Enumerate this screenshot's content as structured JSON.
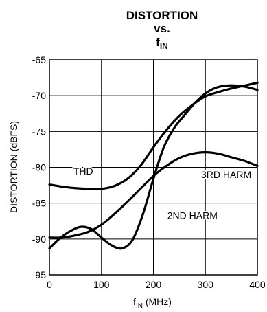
{
  "chart_data": {
    "type": "line",
    "title": {
      "line1": "DISTORTION",
      "line2": "vs.",
      "line3_main": "f",
      "line3_sub": "IN"
    },
    "xlabel": {
      "main": "f",
      "sub": "IN",
      "rest": " (MHz)"
    },
    "ylabel": "DISTORTION (dBFS)",
    "xlim": [
      0,
      400
    ],
    "ylim": [
      -95,
      -65
    ],
    "xticks": [
      0,
      100,
      200,
      300,
      400
    ],
    "yticks": [
      -65,
      -70,
      -75,
      -80,
      -85,
      -90,
      -95
    ],
    "grid": true,
    "series": [
      {
        "name": "THD",
        "points": [
          [
            0,
            -82.4
          ],
          [
            25,
            -82.7
          ],
          [
            50,
            -82.9
          ],
          [
            75,
            -83.0
          ],
          [
            100,
            -83.0
          ],
          [
            125,
            -82.6
          ],
          [
            150,
            -81.6
          ],
          [
            175,
            -79.8
          ],
          [
            200,
            -77.2
          ],
          [
            225,
            -74.8
          ],
          [
            250,
            -72.8
          ],
          [
            275,
            -71.3
          ],
          [
            300,
            -70.1
          ],
          [
            325,
            -69.5
          ],
          [
            350,
            -69.0
          ],
          [
            375,
            -68.6
          ],
          [
            400,
            -68.2
          ]
        ]
      },
      {
        "name": "2ND HARM",
        "points": [
          [
            0,
            -91.3
          ],
          [
            20,
            -89.9
          ],
          [
            40,
            -88.9
          ],
          [
            60,
            -88.3
          ],
          [
            80,
            -88.6
          ],
          [
            100,
            -89.8
          ],
          [
            120,
            -90.9
          ],
          [
            140,
            -91.3
          ],
          [
            160,
            -90.1
          ],
          [
            180,
            -86.5
          ],
          [
            200,
            -81.6
          ],
          [
            220,
            -77.2
          ],
          [
            240,
            -74.5
          ],
          [
            260,
            -72.7
          ],
          [
            280,
            -71.0
          ],
          [
            300,
            -69.7
          ],
          [
            320,
            -68.9
          ],
          [
            340,
            -68.6
          ],
          [
            360,
            -68.6
          ],
          [
            380,
            -68.8
          ],
          [
            400,
            -69.2
          ]
        ]
      },
      {
        "name": "3RD HARM",
        "points": [
          [
            0,
            -89.8
          ],
          [
            25,
            -89.8
          ],
          [
            50,
            -89.5
          ],
          [
            75,
            -89.0
          ],
          [
            100,
            -88.0
          ],
          [
            125,
            -86.5
          ],
          [
            150,
            -84.8
          ],
          [
            175,
            -83.0
          ],
          [
            200,
            -81.2
          ],
          [
            225,
            -79.8
          ],
          [
            250,
            -78.7
          ],
          [
            275,
            -78.1
          ],
          [
            300,
            -77.9
          ],
          [
            325,
            -78.1
          ],
          [
            350,
            -78.6
          ],
          [
            375,
            -79.1
          ],
          [
            400,
            -79.8
          ]
        ]
      }
    ],
    "annotations": [
      {
        "text": "THD",
        "x": 65,
        "y": -81.0
      },
      {
        "text": "3RD HARM",
        "x": 340,
        "y": -81.5
      },
      {
        "text": "2ND HARM",
        "x": 275,
        "y": -87.2
      }
    ]
  }
}
